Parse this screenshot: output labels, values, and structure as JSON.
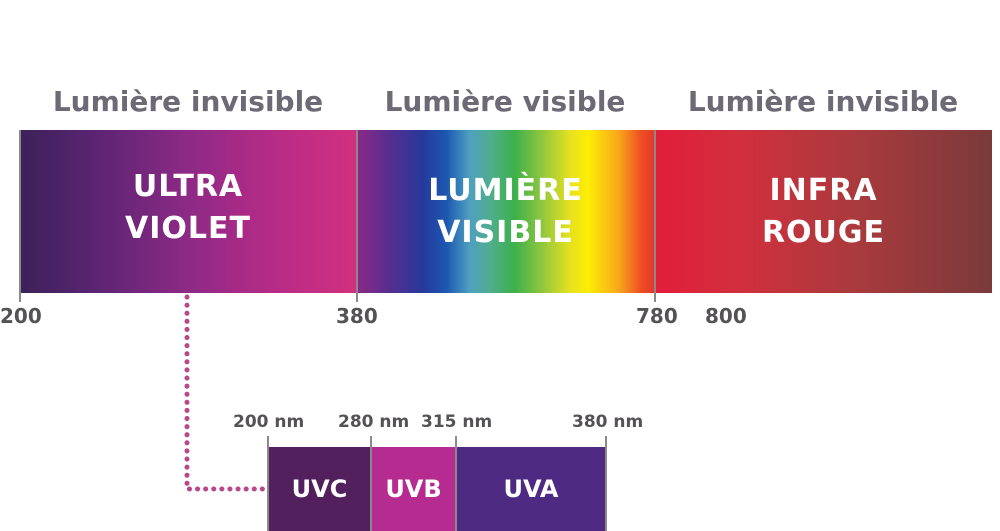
{
  "headings": {
    "left": "Lumière invisible",
    "middle": "Lumière visible",
    "right": "Lumière invisible"
  },
  "bands": {
    "ultraviolet": {
      "line1": "ULTRA",
      "line2": "VIOLET"
    },
    "visible": {
      "line1": "LUMIÈRE",
      "line2": "VISIBLE"
    },
    "infrared": {
      "line1": "INFRA",
      "line2": "ROUGE"
    }
  },
  "main_ticks": [
    "200",
    "380",
    "780",
    "800"
  ],
  "uv_detail": {
    "ticks": [
      "200 nm",
      "280 nm",
      "315 nm",
      "380 nm"
    ],
    "segments": [
      "UVC",
      "UVB",
      "UVA"
    ]
  },
  "colors": {
    "heading": "#6d6a75",
    "connector": "#b8488a",
    "uvc": "#53205e",
    "uvb": "#b62b8f",
    "uva": "#4f2a83"
  }
}
